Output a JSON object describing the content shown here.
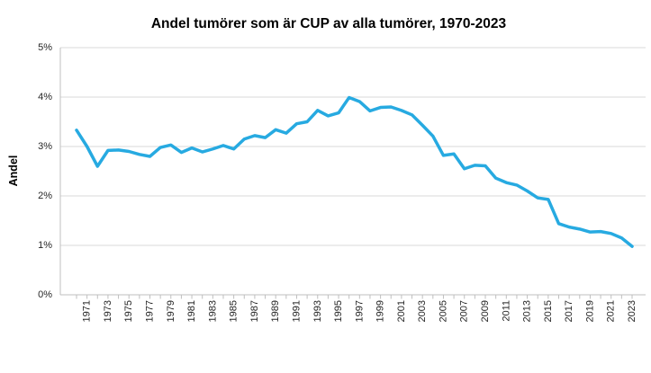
{
  "chart_data": {
    "type": "line",
    "title": "Andel tumörer som är CUP av alla tumörer, 1970-2023",
    "xlabel": "",
    "ylabel": "Andel",
    "ylim": [
      0,
      5
    ],
    "y_tick_labels": [
      "0%",
      "1%",
      "2%",
      "3%",
      "4%",
      "5%"
    ],
    "grid": "horizontal",
    "legend": "none",
    "x": [
      1970,
      1971,
      1972,
      1973,
      1974,
      1975,
      1976,
      1977,
      1978,
      1979,
      1980,
      1981,
      1982,
      1983,
      1984,
      1985,
      1986,
      1987,
      1988,
      1989,
      1990,
      1991,
      1992,
      1993,
      1994,
      1995,
      1996,
      1997,
      1998,
      1999,
      2000,
      2001,
      2002,
      2003,
      2004,
      2005,
      2006,
      2007,
      2008,
      2009,
      2010,
      2011,
      2012,
      2013,
      2014,
      2015,
      2016,
      2017,
      2018,
      2019,
      2020,
      2021,
      2022,
      2023
    ],
    "x_labeled_ticks": [
      1971,
      1973,
      1975,
      1977,
      1979,
      1981,
      1983,
      1985,
      1987,
      1989,
      1991,
      1993,
      1995,
      1997,
      1999,
      2001,
      2003,
      2005,
      2007,
      2009,
      2011,
      2013,
      2015,
      2017,
      2019,
      2021,
      2023
    ],
    "series": [
      {
        "name": "Andel CUP av alla tumörer (%)",
        "values": [
          3.33,
          3.0,
          2.6,
          2.92,
          2.93,
          2.9,
          2.84,
          2.8,
          2.98,
          3.03,
          2.88,
          2.97,
          2.89,
          2.95,
          3.02,
          2.95,
          3.15,
          3.22,
          3.18,
          3.34,
          3.27,
          3.46,
          3.5,
          3.73,
          3.62,
          3.68,
          3.99,
          3.91,
          3.72,
          3.79,
          3.8,
          3.73,
          3.64,
          3.43,
          3.21,
          2.82,
          2.85,
          2.55,
          2.62,
          2.61,
          2.36,
          2.27,
          2.22,
          2.1,
          1.96,
          1.93,
          1.44,
          1.37,
          1.33,
          1.27,
          1.28,
          1.24,
          1.15,
          0.98
        ]
      }
    ],
    "colors": {
      "line": "#27AAE1",
      "gridline": "#D9D9D9",
      "axis": "#BFBFBF",
      "tick_text": "#262626",
      "title_text": "#000000"
    }
  }
}
